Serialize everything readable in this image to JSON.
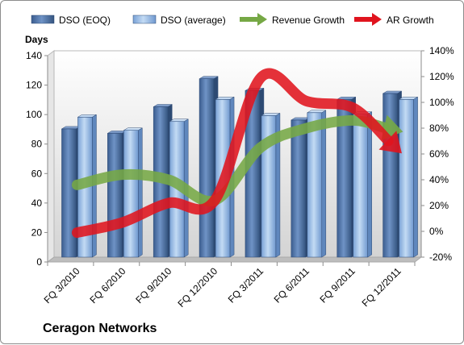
{
  "chart_data": {
    "type": "bar",
    "title": "",
    "company": "Ceragon Networks",
    "ylabel_left": "Days",
    "categories": [
      "FQ 3/2010",
      "FQ 6/2010",
      "FQ 9/2010",
      "FQ 12/2010",
      "FQ 3/2011",
      "FQ 6/2011",
      "FQ 9/2011",
      "FQ 12/2011"
    ],
    "left_axis": {
      "min": 0,
      "max": 140,
      "step": 20
    },
    "right_axis": {
      "min": -20,
      "max": 140,
      "step": 20,
      "suffix": "%"
    },
    "bar_series": [
      {
        "name": "DSO (EOQ)",
        "color": "#4a6fa5",
        "values": [
          87,
          84,
          102,
          121,
          113,
          93,
          107,
          111
        ]
      },
      {
        "name": "DSO (average)",
        "color": "#8db4e2",
        "values": [
          95,
          86,
          92,
          107,
          96,
          98,
          97,
          107
        ]
      }
    ],
    "line_series": [
      {
        "name": "Revenue Growth",
        "color": "#76a845",
        "axis": "right",
        "values": [
          36,
          44,
          40,
          24,
          65,
          80,
          86,
          78
        ]
      },
      {
        "name": "AR Growth",
        "color": "#e0141e",
        "axis": "right",
        "values": [
          -1,
          7,
          22,
          24,
          119,
          101,
          96,
          63
        ]
      }
    ],
    "legend_position": "top",
    "grid": false
  }
}
